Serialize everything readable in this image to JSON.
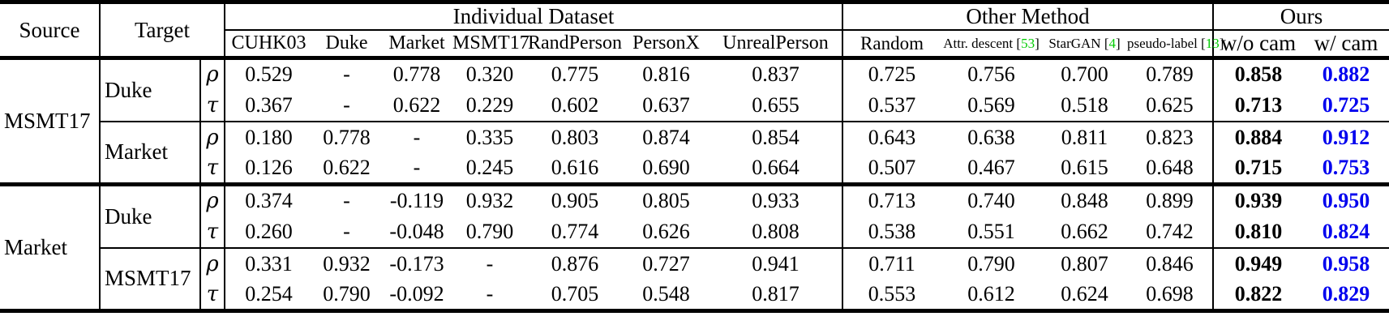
{
  "header": {
    "source": "Source",
    "target": "Target",
    "groups": [
      {
        "label": "Individual Dataset",
        "columns": [
          "CUHK03",
          "Duke",
          "Market",
          "MSMT17",
          "RandPerson",
          "PersonX",
          "UnrealPerson"
        ]
      },
      {
        "label": "Other Method",
        "columns": [
          {
            "name": "Random"
          },
          {
            "name": "Attr. descent",
            "cite": "53"
          },
          {
            "name": "StarGAN",
            "cite": "4"
          },
          {
            "name": "pseudo-label",
            "cite": "13"
          }
        ]
      },
      {
        "label": "Ours",
        "columns": [
          "w/o cam",
          "w/ cam"
        ]
      }
    ]
  },
  "colors": {
    "ours_with_cam_blue": "#0000EE",
    "citation_green": "#00CC00"
  },
  "row_groups": [
    {
      "source": "MSMT17",
      "targets": [
        {
          "target": "Duke",
          "rows": [
            {
              "metric": "ρ",
              "individual": [
                "0.529",
                "-",
                "0.778",
                "0.320",
                "0.775",
                "0.816",
                "0.837"
              ],
              "other": [
                "0.725",
                "0.756",
                "0.700",
                "0.789"
              ],
              "ours": [
                "0.858",
                "0.882"
              ]
            },
            {
              "metric": "τ",
              "individual": [
                "0.367",
                "-",
                "0.622",
                "0.229",
                "0.602",
                "0.637",
                "0.655"
              ],
              "other": [
                "0.537",
                "0.569",
                "0.518",
                "0.625"
              ],
              "ours": [
                "0.713",
                "0.725"
              ]
            }
          ]
        },
        {
          "target": "Market",
          "rows": [
            {
              "metric": "ρ",
              "individual": [
                "0.180",
                "0.778",
                "-",
                "0.335",
                "0.803",
                "0.874",
                "0.854"
              ],
              "other": [
                "0.643",
                "0.638",
                "0.811",
                "0.823"
              ],
              "ours": [
                "0.884",
                "0.912"
              ]
            },
            {
              "metric": "τ",
              "individual": [
                "0.126",
                "0.622",
                "-",
                "0.245",
                "0.616",
                "0.690",
                "0.664"
              ],
              "other": [
                "0.507",
                "0.467",
                "0.615",
                "0.648"
              ],
              "ours": [
                "0.715",
                "0.753"
              ]
            }
          ]
        }
      ]
    },
    {
      "source": "Market",
      "targets": [
        {
          "target": "Duke",
          "rows": [
            {
              "metric": "ρ",
              "individual": [
                "0.374",
                "-",
                "-0.119",
                "0.932",
                "0.905",
                "0.805",
                "0.933"
              ],
              "other": [
                "0.713",
                "0.740",
                "0.848",
                "0.899"
              ],
              "ours": [
                "0.939",
                "0.950"
              ]
            },
            {
              "metric": "τ",
              "individual": [
                "0.260",
                "-",
                "-0.048",
                "0.790",
                "0.774",
                "0.626",
                "0.808"
              ],
              "other": [
                "0.538",
                "0.551",
                "0.662",
                "0.742"
              ],
              "ours": [
                "0.810",
                "0.824"
              ]
            }
          ]
        },
        {
          "target": "MSMT17",
          "rows": [
            {
              "metric": "ρ",
              "individual": [
                "0.331",
                "0.932",
                "-0.173",
                "-",
                "0.876",
                "0.727",
                "0.941"
              ],
              "other": [
                "0.711",
                "0.790",
                "0.807",
                "0.846"
              ],
              "ours": [
                "0.949",
                "0.958"
              ]
            },
            {
              "metric": "τ",
              "individual": [
                "0.254",
                "0.790",
                "-0.092",
                "-",
                "0.705",
                "0.548",
                "0.817"
              ],
              "other": [
                "0.553",
                "0.612",
                "0.624",
                "0.698"
              ],
              "ours": [
                "0.822",
                "0.829"
              ]
            }
          ]
        }
      ]
    }
  ]
}
